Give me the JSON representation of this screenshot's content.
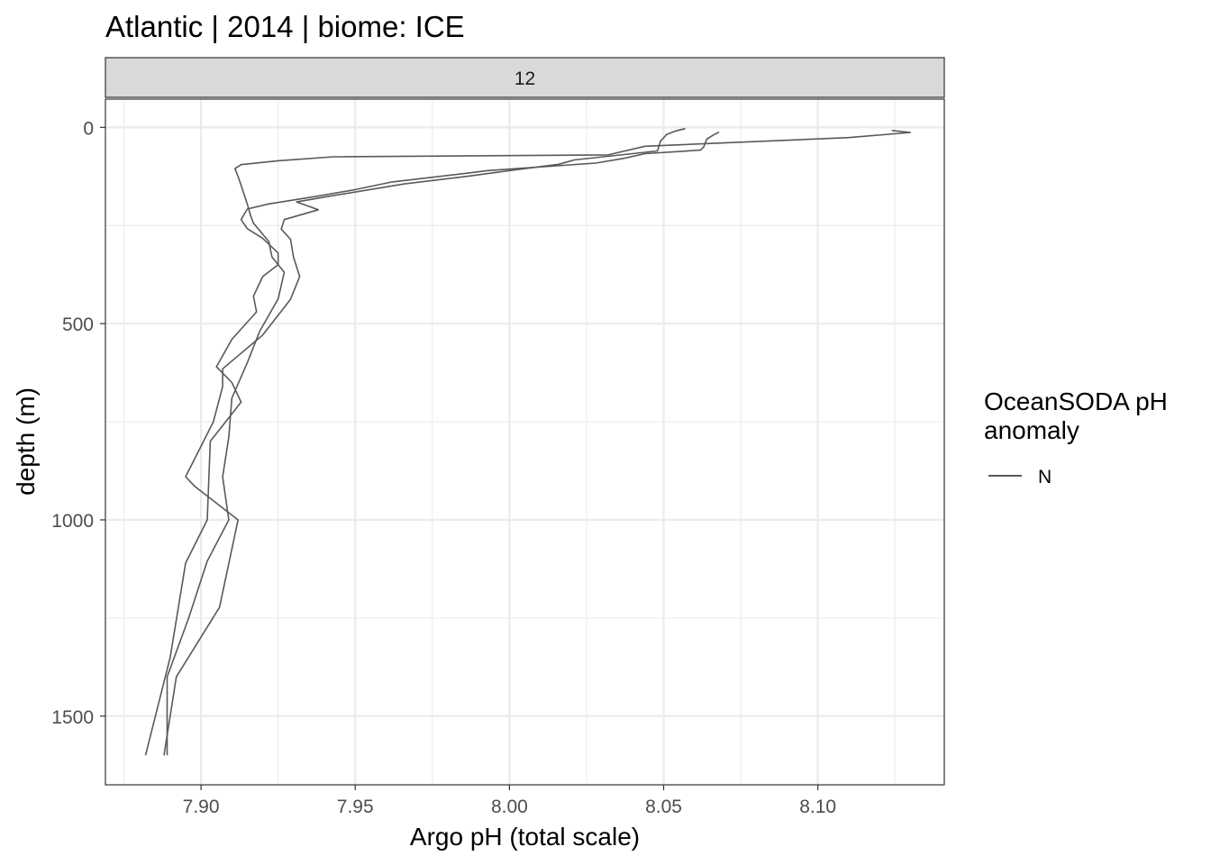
{
  "chart_data": {
    "type": "line",
    "title": "Atlantic | 2014 | biome: ICE",
    "facet_label": "12",
    "xlabel": "Argo pH (total scale)",
    "ylabel": "depth (m)",
    "xlim": [
      7.869,
      8.141
    ],
    "ylim": [
      -72,
      1675
    ],
    "y_reversed": true,
    "x_ticks": [
      7.9,
      7.95,
      8.0,
      8.05,
      8.1
    ],
    "x_tick_labels": [
      "7.90",
      "7.95",
      "8.00",
      "8.05",
      "8.10"
    ],
    "y_ticks": [
      0,
      500,
      1000,
      1500
    ],
    "y_tick_labels": [
      "0",
      "500",
      "1000",
      "1500"
    ],
    "grid": true,
    "line_color": "#595959",
    "legend": {
      "title_lines": [
        "OceanSODA pH",
        "anomaly"
      ],
      "entries": [
        {
          "label": "N",
          "color": "#595959"
        }
      ],
      "position": "right"
    },
    "series": [
      {
        "points": [
          [
            8.124,
            8
          ],
          [
            8.13,
            13
          ],
          [
            8.11,
            26
          ],
          [
            8.044,
            48
          ],
          [
            8.032,
            70
          ],
          [
            7.943,
            75
          ],
          [
            7.925,
            85
          ],
          [
            7.913,
            95
          ],
          [
            7.911,
            105
          ],
          [
            7.912,
            125
          ],
          [
            7.913,
            148
          ],
          [
            7.915,
            195
          ],
          [
            7.916,
            223
          ],
          [
            7.917,
            244
          ],
          [
            7.922,
            291
          ],
          [
            7.923,
            330
          ],
          [
            7.927,
            369
          ],
          [
            7.925,
            437
          ],
          [
            7.919,
            520
          ],
          [
            7.915,
            600
          ],
          [
            7.91,
            690
          ],
          [
            7.909,
            790
          ],
          [
            7.907,
            890
          ],
          [
            7.909,
            1000
          ],
          [
            7.902,
            1105
          ],
          [
            7.896,
            1250
          ],
          [
            7.889,
            1400
          ],
          [
            7.889,
            1600
          ]
        ]
      },
      {
        "points": [
          [
            8.068,
            12
          ],
          [
            8.066,
            20
          ],
          [
            8.064,
            30
          ],
          [
            8.063,
            50
          ],
          [
            8.062,
            58
          ],
          [
            8.044,
            67
          ],
          [
            8.037,
            79
          ],
          [
            8.028,
            91
          ],
          [
            7.993,
            110
          ],
          [
            7.986,
            117
          ],
          [
            7.962,
            139
          ],
          [
            7.949,
            160
          ],
          [
            7.938,
            175
          ],
          [
            7.922,
            195
          ],
          [
            7.915,
            208
          ],
          [
            7.913,
            235
          ],
          [
            7.915,
            258
          ],
          [
            7.92,
            283
          ],
          [
            7.925,
            320
          ],
          [
            7.925,
            350
          ],
          [
            7.92,
            380
          ],
          [
            7.917,
            430
          ],
          [
            7.918,
            470
          ],
          [
            7.91,
            540
          ],
          [
            7.905,
            610
          ],
          [
            7.91,
            650
          ],
          [
            7.913,
            700
          ],
          [
            7.903,
            800
          ],
          [
            7.902,
            1000
          ],
          [
            7.895,
            1110
          ],
          [
            7.89,
            1350
          ],
          [
            7.882,
            1600
          ]
        ]
      },
      {
        "points": [
          [
            8.057,
            3
          ],
          [
            8.054,
            9
          ],
          [
            8.051,
            18
          ],
          [
            8.049,
            35
          ],
          [
            8.048,
            60
          ],
          [
            8.021,
            83
          ],
          [
            8.016,
            94
          ],
          [
            8.002,
            108
          ],
          [
            7.986,
            125
          ],
          [
            7.966,
            144
          ],
          [
            7.942,
            175
          ],
          [
            7.931,
            190
          ],
          [
            7.938,
            210
          ],
          [
            7.927,
            235
          ],
          [
            7.926,
            259
          ],
          [
            7.929,
            285
          ],
          [
            7.93,
            331
          ],
          [
            7.932,
            380
          ],
          [
            7.929,
            438
          ],
          [
            7.92,
            529
          ],
          [
            7.907,
            615
          ],
          [
            7.907,
            660
          ],
          [
            7.904,
            750
          ],
          [
            7.895,
            890
          ],
          [
            7.898,
            915
          ],
          [
            7.912,
            1000
          ],
          [
            7.906,
            1223
          ],
          [
            7.892,
            1400
          ],
          [
            7.888,
            1600
          ]
        ]
      }
    ]
  }
}
